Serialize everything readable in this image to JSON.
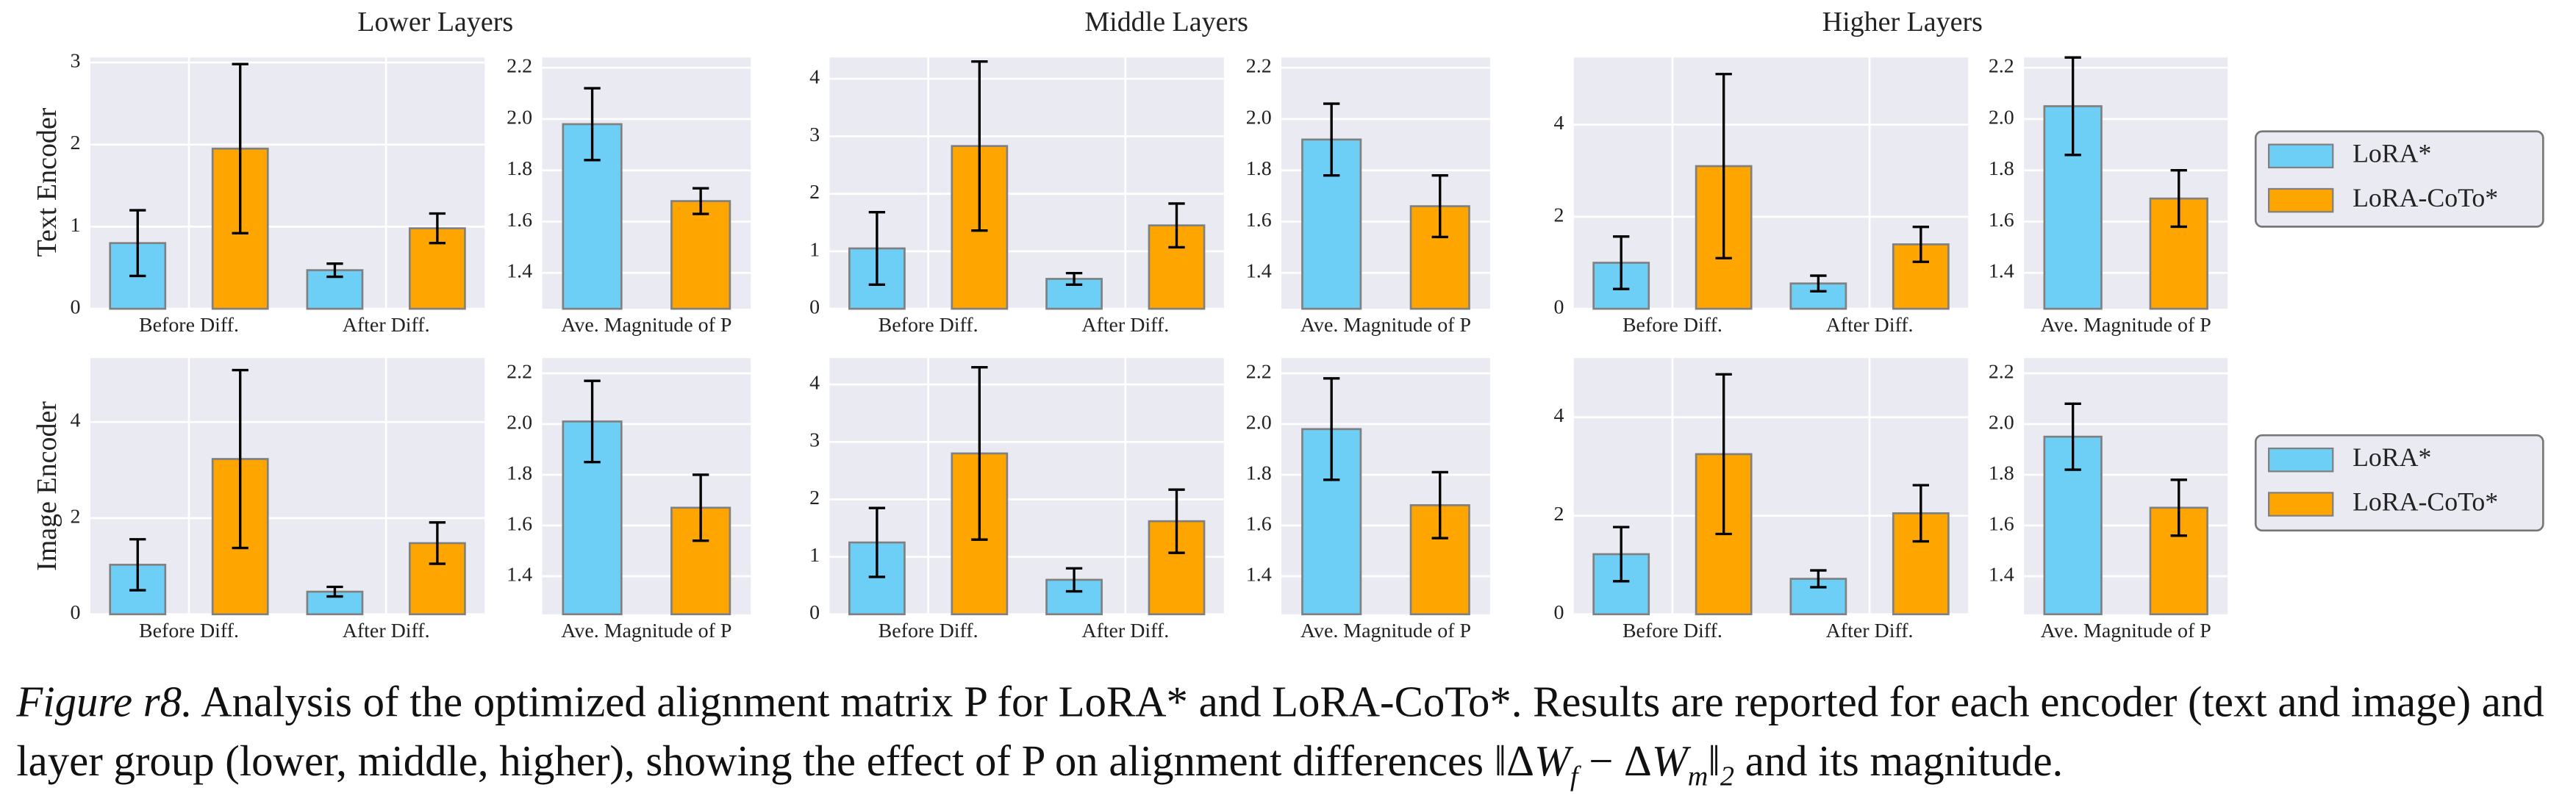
{
  "column_titles": [
    "Lower Layers",
    "Middle Layers",
    "Higher Layers"
  ],
  "row_labels": [
    "Text Encoder",
    "Image Encoder"
  ],
  "legends": [
    {
      "entries": [
        {
          "name": "LoRA*",
          "color": "#6ecff6"
        },
        {
          "name": "LoRA-CoTo*",
          "color": "#ffa500"
        }
      ]
    },
    {
      "entries": [
        {
          "name": "LoRA*",
          "color": "#6ecff6"
        },
        {
          "name": "LoRA-CoTo*",
          "color": "#ffa500"
        }
      ]
    }
  ],
  "chart_data": [
    {
      "type": "bar",
      "categories": [
        "Before Diff.",
        "After Diff."
      ],
      "series": [
        {
          "color": "#6ecff6",
          "values": [
            0.8,
            0.47
          ],
          "errors": [
            0.4,
            0.08
          ]
        },
        {
          "color": "#ffa500",
          "values": [
            1.95,
            0.98
          ],
          "errors": [
            1.03,
            0.18
          ]
        }
      ],
      "ylim": [
        0,
        3.06
      ],
      "yticks": [
        0,
        1,
        2,
        3
      ],
      "grid": true
    },
    {
      "type": "bar",
      "categories": [
        "Ave. Magnitude of P"
      ],
      "series": [
        {
          "color": "#6ecff6",
          "values": [
            1.98
          ],
          "errors": [
            0.14
          ]
        },
        {
          "color": "#ffa500",
          "values": [
            1.68
          ],
          "errors": [
            0.05
          ]
        }
      ],
      "ylim": [
        1.26,
        2.24
      ],
      "yticks": [
        1.4,
        1.6,
        1.8,
        {
          "value": 2,
          "label": "2.0"
        },
        2.2
      ],
      "grid": true
    },
    {
      "type": "bar",
      "categories": [
        "Before Diff.",
        "After Diff."
      ],
      "series": [
        {
          "color": "#6ecff6",
          "values": [
            1.05,
            0.52
          ],
          "errors": [
            0.63,
            0.1
          ]
        },
        {
          "color": "#ffa500",
          "values": [
            2.83,
            1.45
          ],
          "errors": [
            1.47,
            0.38
          ]
        }
      ],
      "ylim": [
        0,
        4.37
      ],
      "yticks": [
        0,
        1,
        2,
        3,
        4
      ],
      "grid": true
    },
    {
      "type": "bar",
      "categories": [
        "Ave. Magnitude of P"
      ],
      "series": [
        {
          "color": "#6ecff6",
          "values": [
            1.92
          ],
          "errors": [
            0.14
          ]
        },
        {
          "color": "#ffa500",
          "values": [
            1.66
          ],
          "errors": [
            0.12
          ]
        }
      ],
      "ylim": [
        1.26,
        2.24
      ],
      "yticks": [
        1.4,
        1.6,
        1.8,
        {
          "value": 2,
          "label": "2.0"
        },
        2.2
      ],
      "grid": true
    },
    {
      "type": "bar",
      "categories": [
        "Before Diff.",
        "After Diff."
      ],
      "series": [
        {
          "color": "#6ecff6",
          "values": [
            1.0,
            0.55
          ],
          "errors": [
            0.57,
            0.17
          ]
        },
        {
          "color": "#ffa500",
          "values": [
            3.1,
            1.4
          ],
          "errors": [
            2.0,
            0.38
          ]
        }
      ],
      "ylim": [
        0,
        5.46
      ],
      "yticks": [
        0,
        2,
        4
      ],
      "grid": true
    },
    {
      "type": "bar",
      "categories": [
        "Ave. Magnitude of P"
      ],
      "series": [
        {
          "color": "#6ecff6",
          "values": [
            2.05
          ],
          "errors": [
            0.19
          ]
        },
        {
          "color": "#ffa500",
          "values": [
            1.69
          ],
          "errors": [
            0.11
          ]
        }
      ],
      "ylim": [
        1.26,
        2.24
      ],
      "yticks": [
        1.4,
        1.6,
        1.8,
        {
          "value": 2,
          "label": "2.0"
        },
        2.2
      ],
      "grid": true
    },
    {
      "type": "bar",
      "categories": [
        "Before Diff.",
        "After Diff."
      ],
      "series": [
        {
          "color": "#6ecff6",
          "values": [
            1.03,
            0.47
          ],
          "errors": [
            0.53,
            0.1
          ]
        },
        {
          "color": "#ffa500",
          "values": [
            3.23,
            1.48
          ],
          "errors": [
            1.85,
            0.43
          ]
        }
      ],
      "ylim": [
        0,
        5.33
      ],
      "yticks": [
        0,
        2,
        4
      ],
      "grid": true
    },
    {
      "type": "bar",
      "categories": [
        "Ave. Magnitude of P"
      ],
      "series": [
        {
          "color": "#6ecff6",
          "values": [
            2.01
          ],
          "errors": [
            0.16
          ]
        },
        {
          "color": "#ffa500",
          "values": [
            1.67
          ],
          "errors": [
            0.13
          ]
        }
      ],
      "ylim": [
        1.25,
        2.26
      ],
      "yticks": [
        1.4,
        1.6,
        1.8,
        {
          "value": 2,
          "label": "2.0"
        },
        2.2
      ],
      "grid": true
    },
    {
      "type": "bar",
      "categories": [
        "Before Diff.",
        "After Diff."
      ],
      "series": [
        {
          "color": "#6ecff6",
          "values": [
            1.25,
            0.6
          ],
          "errors": [
            0.6,
            0.2
          ]
        },
        {
          "color": "#ffa500",
          "values": [
            2.8,
            1.62
          ],
          "errors": [
            1.5,
            0.55
          ]
        }
      ],
      "ylim": [
        0,
        4.46
      ],
      "yticks": [
        0,
        1,
        2,
        3,
        4
      ],
      "grid": true
    },
    {
      "type": "bar",
      "categories": [
        "Ave. Magnitude of P"
      ],
      "series": [
        {
          "color": "#6ecff6",
          "values": [
            1.98
          ],
          "errors": [
            0.2
          ]
        },
        {
          "color": "#ffa500",
          "values": [
            1.68
          ],
          "errors": [
            0.13
          ]
        }
      ],
      "ylim": [
        1.25,
        2.26
      ],
      "yticks": [
        1.4,
        1.6,
        1.8,
        {
          "value": 2,
          "label": "2.0"
        },
        2.2
      ],
      "grid": true
    },
    {
      "type": "bar",
      "categories": [
        "Before Diff.",
        "After Diff."
      ],
      "series": [
        {
          "color": "#6ecff6",
          "values": [
            1.22,
            0.72
          ],
          "errors": [
            0.55,
            0.17
          ]
        },
        {
          "color": "#ffa500",
          "values": [
            3.25,
            2.05
          ],
          "errors": [
            1.62,
            0.57
          ]
        }
      ],
      "ylim": [
        0,
        5.2
      ],
      "yticks": [
        0,
        2,
        4
      ],
      "grid": true
    },
    {
      "type": "bar",
      "categories": [
        "Ave. Magnitude of P"
      ],
      "series": [
        {
          "color": "#6ecff6",
          "values": [
            1.95
          ],
          "errors": [
            0.13
          ]
        },
        {
          "color": "#ffa500",
          "values": [
            1.67
          ],
          "errors": [
            0.11
          ]
        }
      ],
      "ylim": [
        1.25,
        2.26
      ],
      "yticks": [
        1.4,
        1.6,
        1.8,
        {
          "value": 2,
          "label": "2.0"
        },
        2.2
      ],
      "grid": true
    }
  ],
  "caption": {
    "label": "Figure r8.",
    "text": "Analysis of the optimized alignment matrix P for LoRA* and LoRA-CoTo*. Results are reported for each encoder (text and image) and layer group (lower, middle, higher), showing the effect of P on alignment differences",
    "math": [
      "‖Δ",
      "W",
      "f",
      " − Δ",
      "W",
      "m",
      "‖",
      "2"
    ],
    "text_end": "and its magnitude."
  }
}
